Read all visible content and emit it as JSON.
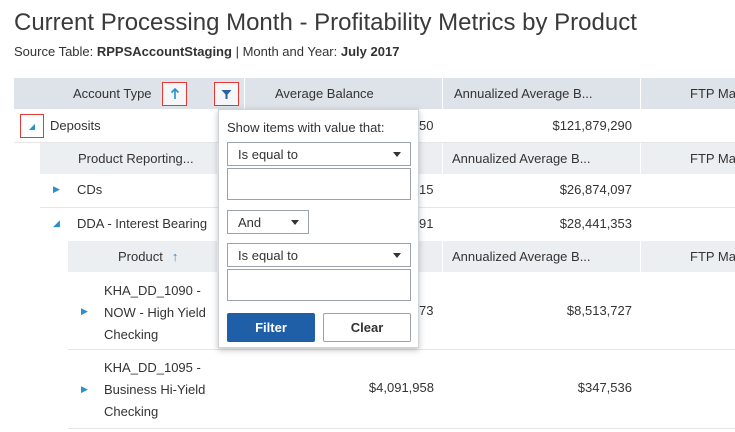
{
  "title": "Current Processing Month - Profitability Metrics by Product",
  "subtitle": {
    "source_label": "Source Table: ",
    "source_value": "RPPSAccountStaging",
    "separator": " | ",
    "period_label": "Month and Year: ",
    "period_value": "July 2017"
  },
  "header": {
    "account_type": "Account Type",
    "average_balance": "Average Balance",
    "annualized_average": "Annualized Average B...",
    "ftp": "FTP Ma"
  },
  "deposits": {
    "label": "Deposits",
    "avg_balance_partial": "50",
    "annualized": "$121,879,290"
  },
  "product_reporting_header": {
    "label": "Product Reporting...",
    "annualized": "Annualized Average B...",
    "ftp": "FTP Ma"
  },
  "cds": {
    "label": "CDs",
    "avg_balance_partial": "15",
    "annualized": "$26,874,097"
  },
  "dda": {
    "label": "DDA - Interest Bearing",
    "avg_balance_partial": "91",
    "annualized": "$28,441,353"
  },
  "product_header": {
    "label": "Product",
    "annualized": "Annualized Average B...",
    "ftp": "FTP Ma"
  },
  "rows": [
    {
      "line1": "KHA_DD_1090 -",
      "line2": "NOW - High Yield",
      "line3": "Checking",
      "avg_balance": "73",
      "annualized": "$8,513,727"
    },
    {
      "line1": "KHA_DD_1095 -",
      "line2": "Business Hi-Yield",
      "line3": "Checking",
      "avg_balance": "$4,091,958",
      "annualized": "$347,536"
    }
  ],
  "filter_popup": {
    "label": "Show items with value that:",
    "condition1": "Is equal to",
    "value1": "",
    "logic": "And",
    "condition2": "Is equal to",
    "value2": "",
    "filter_button": "Filter",
    "clear_button": "Clear"
  },
  "colors": {
    "accent": "#1f5fa8",
    "toggle": "#2a8fcb",
    "highlight": "#e53935"
  }
}
